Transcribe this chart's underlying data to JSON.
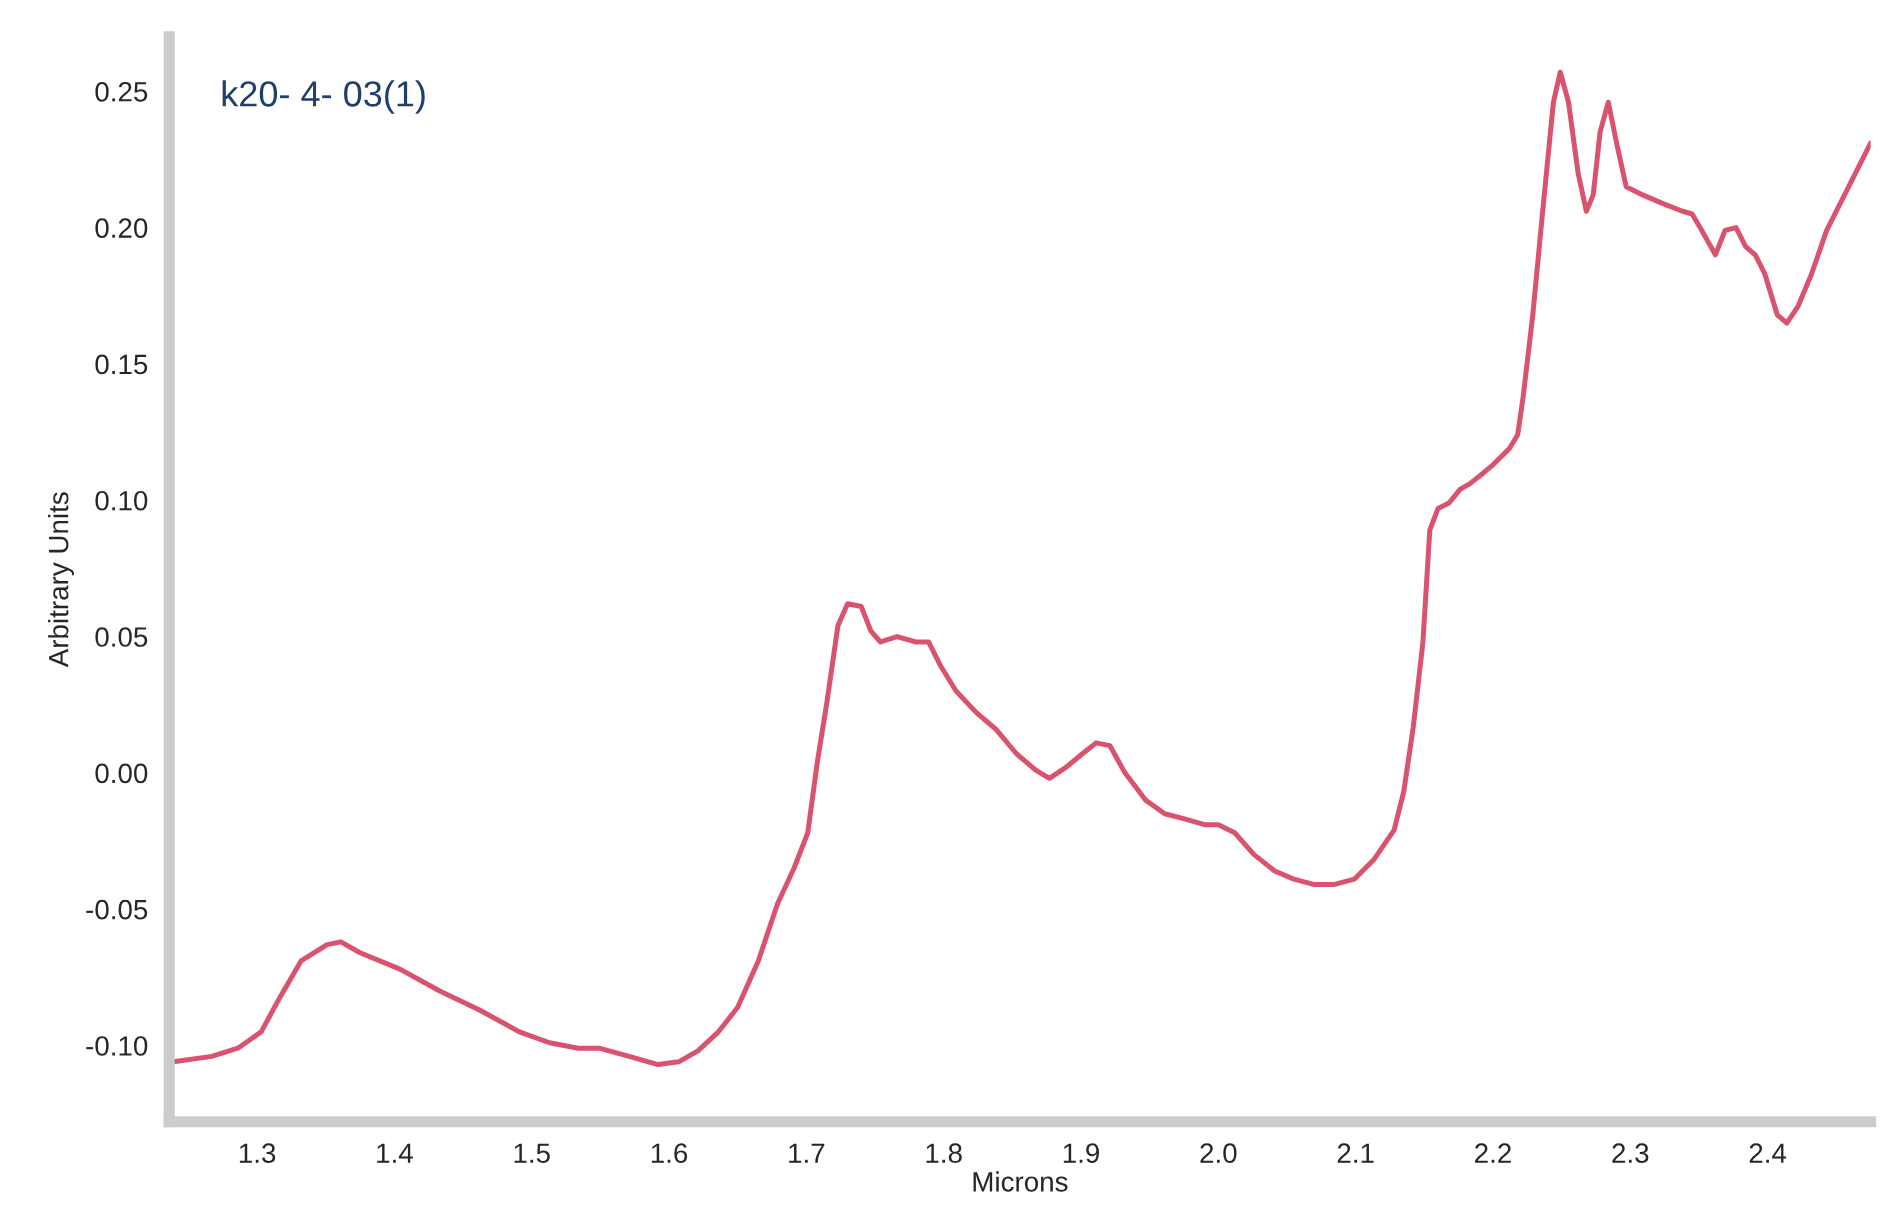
{
  "chart_data": {
    "type": "line",
    "xlabel": "Microns",
    "ylabel": "Arbitrary Units",
    "annotations": [
      "k20- 4- 03(1)"
    ],
    "x": [
      1.239,
      1.267,
      1.286,
      1.303,
      1.317,
      1.332,
      1.351,
      1.361,
      1.375,
      1.404,
      1.433,
      1.462,
      1.491,
      1.513,
      1.534,
      1.549,
      1.571,
      1.592,
      1.607,
      1.621,
      1.636,
      1.65,
      1.665,
      1.679,
      1.691,
      1.701,
      1.708,
      1.715,
      1.723,
      1.73,
      1.74,
      1.747,
      1.754,
      1.766,
      1.78,
      1.789,
      1.798,
      1.809,
      1.824,
      1.838,
      1.853,
      1.867,
      1.877,
      1.889,
      1.901,
      1.911,
      1.921,
      1.932,
      1.947,
      1.961,
      1.976,
      1.99,
      2.0,
      2.012,
      2.026,
      2.041,
      2.055,
      2.07,
      2.084,
      2.099,
      2.113,
      2.128,
      2.135,
      2.142,
      2.149,
      2.154,
      2.16,
      2.168,
      2.176,
      2.183,
      2.193,
      2.2,
      2.212,
      2.218,
      2.222,
      2.229,
      2.236,
      2.244,
      2.249,
      2.255,
      2.262,
      2.268,
      2.273,
      2.278,
      2.284,
      2.29,
      2.297,
      2.309,
      2.323,
      2.338,
      2.345,
      2.352,
      2.362,
      2.369,
      2.377,
      2.384,
      2.391,
      2.398,
      2.407,
      2.414,
      2.422,
      2.432,
      2.443,
      2.453,
      2.464,
      2.475
    ],
    "series": [
      {
        "color": "#d9536e",
        "values": [
          -0.106,
          -0.104,
          -0.101,
          -0.095,
          -0.082,
          -0.069,
          -0.063,
          -0.062,
          -0.066,
          -0.072,
          -0.08,
          -0.087,
          -0.095,
          -0.099,
          -0.101,
          -0.101,
          -0.104,
          -0.107,
          -0.106,
          -0.102,
          -0.095,
          -0.086,
          -0.069,
          -0.048,
          -0.035,
          -0.022,
          0.004,
          0.026,
          0.054,
          0.062,
          0.061,
          0.052,
          0.048,
          0.05,
          0.048,
          0.048,
          0.039,
          0.03,
          0.022,
          0.016,
          0.007,
          0.001,
          -0.002,
          0.002,
          0.007,
          0.011,
          0.01,
          0.0,
          -0.01,
          -0.015,
          -0.017,
          -0.019,
          -0.019,
          -0.022,
          -0.03,
          -0.036,
          -0.039,
          -0.041,
          -0.041,
          -0.039,
          -0.032,
          -0.021,
          -0.007,
          0.017,
          0.048,
          0.089,
          0.097,
          0.099,
          0.104,
          0.106,
          0.11,
          0.113,
          0.119,
          0.124,
          0.138,
          0.168,
          0.205,
          0.246,
          0.257,
          0.246,
          0.22,
          0.206,
          0.212,
          0.235,
          0.246,
          0.231,
          0.215,
          0.212,
          0.209,
          0.206,
          0.205,
          0.199,
          0.19,
          0.199,
          0.2,
          0.193,
          0.19,
          0.183,
          0.168,
          0.165,
          0.171,
          0.183,
          0.199,
          0.209,
          0.22,
          0.231
        ]
      }
    ],
    "xlim": [
      1.236,
      2.475
    ],
    "ylim": [
      -0.128,
      0.27
    ],
    "xticks": [
      1.3,
      1.4,
      1.5,
      1.6,
      1.7,
      1.8,
      1.9,
      {
        "value": 2,
        "label": "2.0"
      },
      2.1,
      2.2,
      2.3,
      2.4
    ],
    "yticks": [
      {
        "value": -0.1,
        "label": "-0.10"
      },
      {
        "value": -0.05,
        "label": "-0.05"
      },
      {
        "value": 0,
        "label": "0.00"
      },
      {
        "value": 0.05,
        "label": "0.05"
      },
      {
        "value": 0.1,
        "label": "0.10"
      },
      {
        "value": 0.15,
        "label": "0.15"
      },
      {
        "value": 0.2,
        "label": "0.20"
      },
      {
        "value": 0.25,
        "label": "0.25"
      }
    ],
    "grid": false,
    "legend": false
  }
}
